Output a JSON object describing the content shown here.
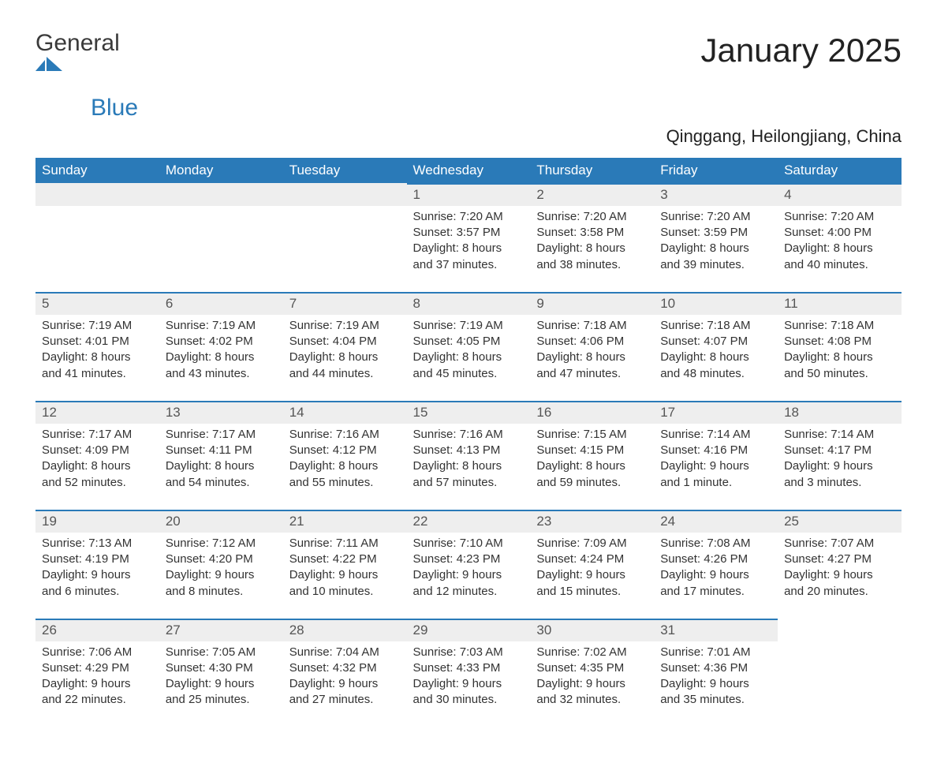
{
  "logo": {
    "text1": "General",
    "text2": "Blue"
  },
  "title": "January 2025",
  "subtitle": "Qinggang, Heilongjiang, China",
  "colors": {
    "brand": "#2a7ab8",
    "header_bg": "#2a7ab8",
    "header_text": "#ffffff",
    "daybar_bg": "#eeeeee",
    "text": "#333333",
    "page_bg": "#ffffff"
  },
  "dayNames": [
    "Sunday",
    "Monday",
    "Tuesday",
    "Wednesday",
    "Thursday",
    "Friday",
    "Saturday"
  ],
  "labels": {
    "sunrise": "Sunrise:",
    "sunset": "Sunset:",
    "daylight": "Daylight:"
  },
  "startWeekday": 3,
  "days": [
    {
      "n": 1,
      "sunrise": "7:20 AM",
      "sunset": "3:57 PM",
      "daylight": "8 hours and 37 minutes."
    },
    {
      "n": 2,
      "sunrise": "7:20 AM",
      "sunset": "3:58 PM",
      "daylight": "8 hours and 38 minutes."
    },
    {
      "n": 3,
      "sunrise": "7:20 AM",
      "sunset": "3:59 PM",
      "daylight": "8 hours and 39 minutes."
    },
    {
      "n": 4,
      "sunrise": "7:20 AM",
      "sunset": "4:00 PM",
      "daylight": "8 hours and 40 minutes."
    },
    {
      "n": 5,
      "sunrise": "7:19 AM",
      "sunset": "4:01 PM",
      "daylight": "8 hours and 41 minutes."
    },
    {
      "n": 6,
      "sunrise": "7:19 AM",
      "sunset": "4:02 PM",
      "daylight": "8 hours and 43 minutes."
    },
    {
      "n": 7,
      "sunrise": "7:19 AM",
      "sunset": "4:04 PM",
      "daylight": "8 hours and 44 minutes."
    },
    {
      "n": 8,
      "sunrise": "7:19 AM",
      "sunset": "4:05 PM",
      "daylight": "8 hours and 45 minutes."
    },
    {
      "n": 9,
      "sunrise": "7:18 AM",
      "sunset": "4:06 PM",
      "daylight": "8 hours and 47 minutes."
    },
    {
      "n": 10,
      "sunrise": "7:18 AM",
      "sunset": "4:07 PM",
      "daylight": "8 hours and 48 minutes."
    },
    {
      "n": 11,
      "sunrise": "7:18 AM",
      "sunset": "4:08 PM",
      "daylight": "8 hours and 50 minutes."
    },
    {
      "n": 12,
      "sunrise": "7:17 AM",
      "sunset": "4:09 PM",
      "daylight": "8 hours and 52 minutes."
    },
    {
      "n": 13,
      "sunrise": "7:17 AM",
      "sunset": "4:11 PM",
      "daylight": "8 hours and 54 minutes."
    },
    {
      "n": 14,
      "sunrise": "7:16 AM",
      "sunset": "4:12 PM",
      "daylight": "8 hours and 55 minutes."
    },
    {
      "n": 15,
      "sunrise": "7:16 AM",
      "sunset": "4:13 PM",
      "daylight": "8 hours and 57 minutes."
    },
    {
      "n": 16,
      "sunrise": "7:15 AM",
      "sunset": "4:15 PM",
      "daylight": "8 hours and 59 minutes."
    },
    {
      "n": 17,
      "sunrise": "7:14 AM",
      "sunset": "4:16 PM",
      "daylight": "9 hours and 1 minute."
    },
    {
      "n": 18,
      "sunrise": "7:14 AM",
      "sunset": "4:17 PM",
      "daylight": "9 hours and 3 minutes."
    },
    {
      "n": 19,
      "sunrise": "7:13 AM",
      "sunset": "4:19 PM",
      "daylight": "9 hours and 6 minutes."
    },
    {
      "n": 20,
      "sunrise": "7:12 AM",
      "sunset": "4:20 PM",
      "daylight": "9 hours and 8 minutes."
    },
    {
      "n": 21,
      "sunrise": "7:11 AM",
      "sunset": "4:22 PM",
      "daylight": "9 hours and 10 minutes."
    },
    {
      "n": 22,
      "sunrise": "7:10 AM",
      "sunset": "4:23 PM",
      "daylight": "9 hours and 12 minutes."
    },
    {
      "n": 23,
      "sunrise": "7:09 AM",
      "sunset": "4:24 PM",
      "daylight": "9 hours and 15 minutes."
    },
    {
      "n": 24,
      "sunrise": "7:08 AM",
      "sunset": "4:26 PM",
      "daylight": "9 hours and 17 minutes."
    },
    {
      "n": 25,
      "sunrise": "7:07 AM",
      "sunset": "4:27 PM",
      "daylight": "9 hours and 20 minutes."
    },
    {
      "n": 26,
      "sunrise": "7:06 AM",
      "sunset": "4:29 PM",
      "daylight": "9 hours and 22 minutes."
    },
    {
      "n": 27,
      "sunrise": "7:05 AM",
      "sunset": "4:30 PM",
      "daylight": "9 hours and 25 minutes."
    },
    {
      "n": 28,
      "sunrise": "7:04 AM",
      "sunset": "4:32 PM",
      "daylight": "9 hours and 27 minutes."
    },
    {
      "n": 29,
      "sunrise": "7:03 AM",
      "sunset": "4:33 PM",
      "daylight": "9 hours and 30 minutes."
    },
    {
      "n": 30,
      "sunrise": "7:02 AM",
      "sunset": "4:35 PM",
      "daylight": "9 hours and 32 minutes."
    },
    {
      "n": 31,
      "sunrise": "7:01 AM",
      "sunset": "4:36 PM",
      "daylight": "9 hours and 35 minutes."
    }
  ]
}
